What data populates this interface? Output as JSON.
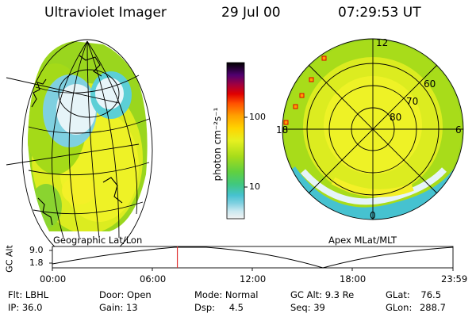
{
  "header": {
    "title": "Ultraviolet Imager",
    "date": "29 Jul 00",
    "time": "07:29:53 UT"
  },
  "left_map": {
    "caption": "Geographic Lat/Lon"
  },
  "right_map": {
    "caption": "Apex MLat/MLT",
    "mlt_labels": [
      "12",
      "6",
      "0",
      "18"
    ],
    "lat_labels": [
      "60",
      "70",
      "80"
    ]
  },
  "colorbar": {
    "unit_label": "photon cm⁻²s⁻¹",
    "ticks": [
      "100",
      "10"
    ],
    "scale": "log"
  },
  "altitude_plot": {
    "axis_label": "GC Alt",
    "yticks": [
      "9.0",
      "1.8"
    ],
    "xticks": [
      "00:00",
      "06:00",
      "12:00",
      "18:00",
      "23:59"
    ],
    "current_time_fraction": 0.312,
    "marker_color": "#e03030"
  },
  "status": {
    "filter": {
      "label": "Flt:",
      "value": "LBHL"
    },
    "ip": {
      "label": "IP:",
      "value": "36.0"
    },
    "door": {
      "label": "Door:",
      "value": "Open"
    },
    "gain": {
      "label": "Gain:",
      "value": "13"
    },
    "mode": {
      "label": "Mode:",
      "value": "Normal"
    },
    "dsp": {
      "label": "Dsp:",
      "value": "4.5"
    },
    "gc_alt": {
      "label": "GC Alt:",
      "value": "9.3 Re"
    },
    "seq": {
      "label": "Seq:",
      "value": "39"
    },
    "glat": {
      "label": "GLat:",
      "value": "76.5"
    },
    "glon": {
      "label": "GLon:",
      "value": "288.7"
    }
  },
  "colors": {
    "aurora_green": "#a8dc1a",
    "aurora_yellow": "#f2f020",
    "aurora_orange": "#ffa000",
    "aurora_cyan": "#46c8d2",
    "aurora_pale": "#e6f4f8"
  }
}
